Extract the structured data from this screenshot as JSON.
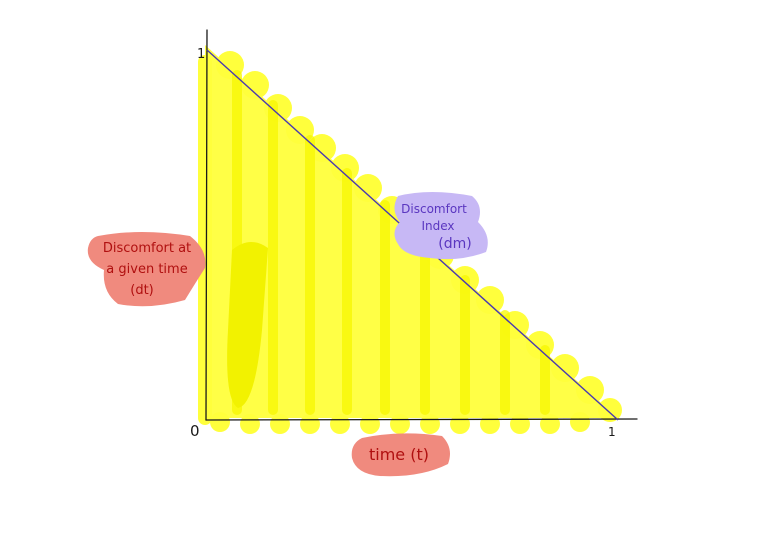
{
  "diagram": {
    "axis_ticks": {
      "y_top": "1",
      "origin": "0",
      "x_right": "1"
    },
    "labels": {
      "x_axis": "time (t)",
      "left_bubble": [
        "Discomfort at",
        "a given time",
        "(dt)"
      ],
      "diagonal_bubble": [
        "Discomfort",
        "Index",
        "(dm)"
      ]
    },
    "colors": {
      "fill": "#ffff3c",
      "fill_dark": "#f5f500",
      "line": "#4a3ab0",
      "axis": "#1a1a1a",
      "left_bubble_bg": "#f08a7e",
      "left_bubble_text": "#b01010",
      "x_bubble_bg": "#f08a7e",
      "x_bubble_text": "#b01010",
      "diagonal_bubble_bg": "#c7b8f5",
      "diagonal_bubble_text": "#5a36c0"
    }
  }
}
